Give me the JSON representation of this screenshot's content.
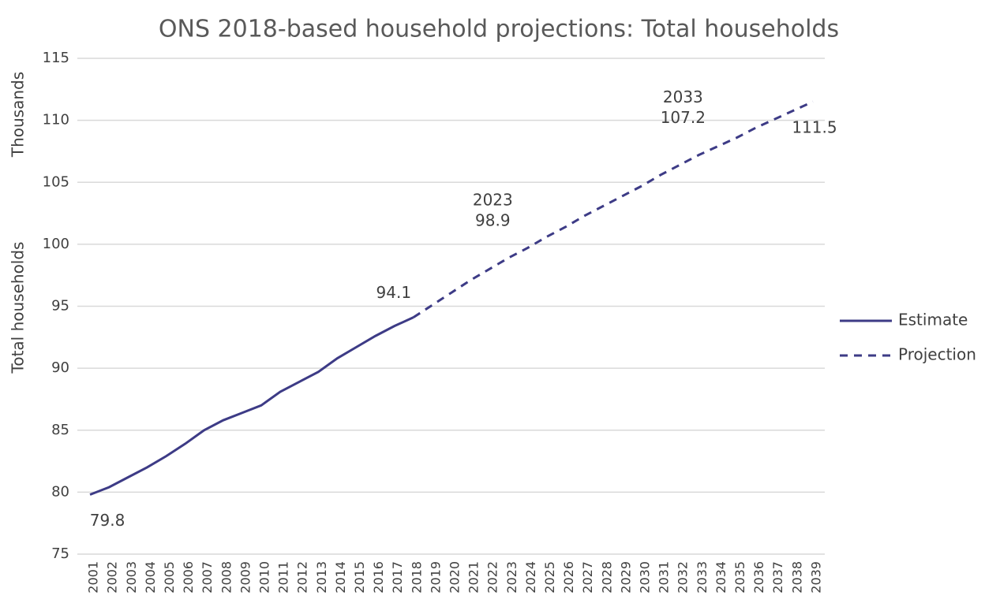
{
  "chart_data": {
    "type": "line",
    "title": "ONS 2018-based household projections: Total households",
    "y_label": "Total households",
    "y_unit": "Thousands",
    "categories": [
      "2001",
      "2002",
      "2003",
      "2004",
      "2005",
      "2006",
      "2007",
      "2008",
      "2009",
      "2010",
      "2011",
      "2012",
      "2013",
      "2014",
      "2015",
      "2016",
      "2017",
      "2018",
      "2019",
      "2020",
      "2021",
      "2022",
      "2023",
      "2024",
      "2025",
      "2026",
      "2027",
      "2028",
      "2029",
      "2030",
      "2031",
      "2032",
      "2033",
      "2034",
      "2035",
      "2036",
      "2037",
      "2038",
      "2039"
    ],
    "series": [
      {
        "name": "Estimate",
        "color": "#3d3b86",
        "dash": false,
        "values": [
          79.8,
          80.4,
          81.2,
          82.0,
          82.9,
          83.9,
          85.0,
          85.8,
          86.4,
          87.0,
          88.1,
          88.9,
          89.7,
          90.8,
          91.7,
          92.6,
          93.4,
          94.1,
          null,
          null,
          null,
          null,
          null,
          null,
          null,
          null,
          null,
          null,
          null,
          null,
          null,
          null,
          null,
          null,
          null,
          null,
          null,
          null,
          null
        ],
        "data_labels": [
          0,
          17
        ]
      },
      {
        "name": "Projection",
        "color": "#3d3b86",
        "dash": true,
        "values": [
          null,
          null,
          null,
          null,
          null,
          null,
          null,
          null,
          null,
          null,
          null,
          null,
          null,
          null,
          null,
          null,
          null,
          94.1,
          95.1,
          96.1,
          97.1,
          98.0,
          98.9,
          99.7,
          100.6,
          101.4,
          102.3,
          103.1,
          103.9,
          104.7,
          105.6,
          106.4,
          107.2,
          107.9,
          108.6,
          109.4,
          110.1,
          110.8,
          111.5
        ],
        "data_labels": [
          22,
          32,
          38
        ],
        "category_labels": [
          22,
          32
        ]
      }
    ],
    "ylim": [
      75,
      115
    ],
    "yticks": [
      75,
      80,
      85,
      90,
      95,
      100,
      105,
      110,
      115
    ],
    "grid": true,
    "legend": "right"
  }
}
